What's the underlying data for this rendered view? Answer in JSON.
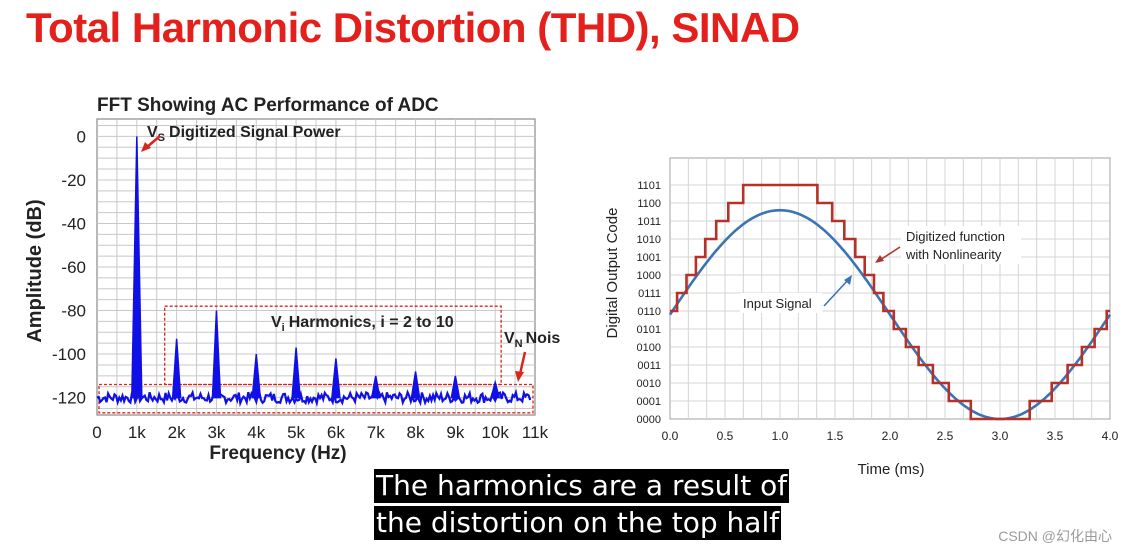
{
  "slide": {
    "title": "Total Harmonic Distortion (THD), SINAD",
    "caption_line1": "The harmonics are a result of",
    "caption_line2": "the distortion on the top half",
    "watermark": "CSDN @幻化由心"
  },
  "colors": {
    "title": "#e3201b",
    "fft_trace": "#1010e6",
    "annotation_red": "#d7261e",
    "grid": "#c8c8c8",
    "input_signal": "#3a74b5",
    "digitized": "#b5322a"
  },
  "chart_data": [
    {
      "type": "line",
      "title": "FFT Showing AC Performance of ADC",
      "xlabel": "Frequency (Hz)",
      "ylabel": "Amplitude (dB)",
      "xlim": [
        0,
        11000
      ],
      "ylim": [
        -128,
        8
      ],
      "x_ticks": [
        "0",
        "1k",
        "2k",
        "3k",
        "4k",
        "5k",
        "6k",
        "7k",
        "8k",
        "9k",
        "10k",
        "11k"
      ],
      "y_ticks": [
        "0",
        "-20",
        "-40",
        "-60",
        "-80",
        "-100",
        "-120"
      ],
      "y_tick_values": [
        0,
        -20,
        -40,
        -60,
        -80,
        -100,
        -120
      ],
      "grid": true,
      "noise_floor": -120,
      "series": [
        {
          "peaks": [
            {
              "x": 1000,
              "y": 0
            },
            {
              "x": 2000,
              "y": -93
            },
            {
              "x": 3000,
              "y": -80
            },
            {
              "x": 4000,
              "y": -100
            },
            {
              "x": 5000,
              "y": -97
            },
            {
              "x": 6000,
              "y": -102
            },
            {
              "x": 7000,
              "y": -110
            },
            {
              "x": 8000,
              "y": -108
            },
            {
              "x": 9000,
              "y": -110
            },
            {
              "x": 10000,
              "y": -113
            }
          ]
        }
      ],
      "annotations": {
        "signal_sub": "S",
        "signal_text": "Digitized Signal Power",
        "harmonics_sub": "i",
        "harmonics_text": "Harmonics, i = 2 to 10",
        "noise_sub": "N",
        "noise_text": "Noise",
        "symbol": "V"
      }
    },
    {
      "type": "line",
      "xlabel": "Time (ms)",
      "ylabel": "Digital Output Code",
      "xlim": [
        0,
        4
      ],
      "x_ticks": [
        "0.0",
        "0.5",
        "1.0",
        "1.5",
        "2.0",
        "2.5",
        "3.0",
        "3.5",
        "4.0"
      ],
      "y_ticks": [
        "0000",
        "0001",
        "0010",
        "0011",
        "0100",
        "0101",
        "0110",
        "0111",
        "1000",
        "1001",
        "1010",
        "1011",
        "1100",
        "1101"
      ],
      "grid": true,
      "series": [
        {
          "name": "Input Signal",
          "kind": "sine",
          "center_code": 5.8,
          "amplitude_codes": 5.8,
          "period_ms": 4,
          "peak_time_ms": 1
        },
        {
          "name": "Digitized function with Nonlinearity",
          "kind": "staircase",
          "top_clip_code": 13
        }
      ],
      "labels": {
        "input": "Input Signal",
        "digitized_line1": "Digitized function",
        "digitized_line2": "with Nonlinearity"
      }
    }
  ]
}
